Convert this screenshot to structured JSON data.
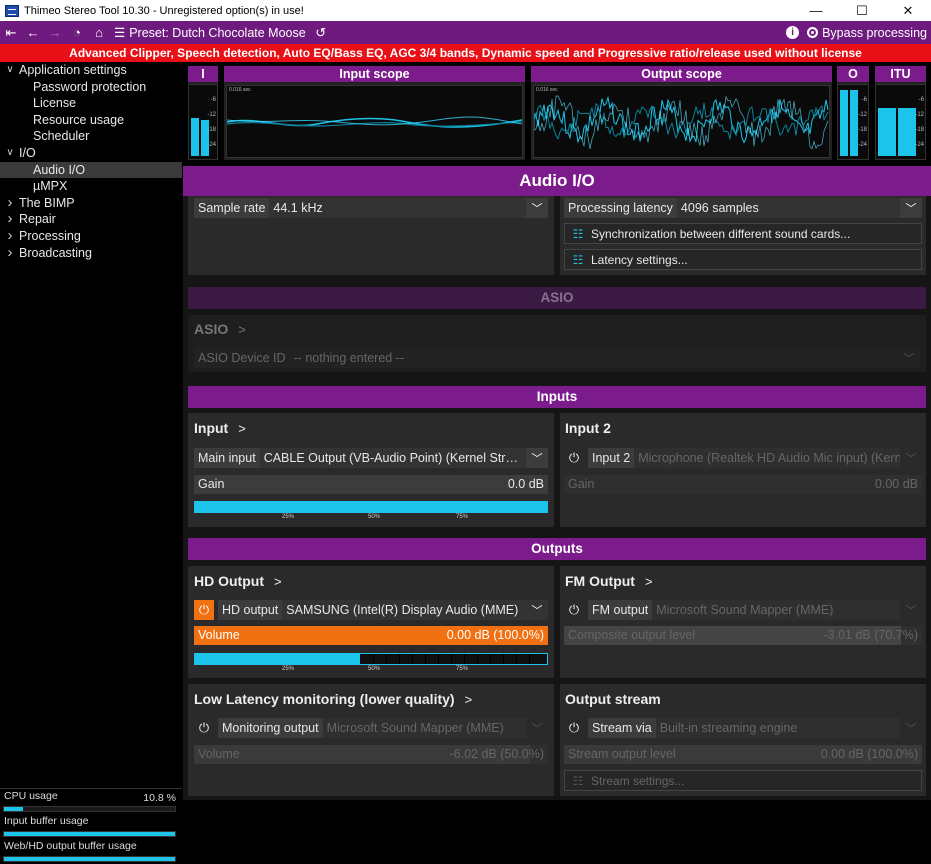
{
  "window": {
    "title": "Thimeo Stereo Tool 10.30 - Unregistered option(s) in use!",
    "controls": [
      "—",
      "☐",
      "✕"
    ]
  },
  "toolbar": {
    "preset_label": "Preset: Dutch Chocolate Moose",
    "bypass_label": "Bypass processing"
  },
  "warning": "Advanced Clipper, Speech detection, Auto EQ/Bass EQ, AGC 3/4 bands, Dynamic speed and Progressive ratio/release used without license",
  "sidebar": {
    "items": [
      {
        "label": "Application settings",
        "expanded": true
      },
      {
        "label": "Password protection",
        "child": true
      },
      {
        "label": "License",
        "child": true
      },
      {
        "label": "Resource usage",
        "child": true
      },
      {
        "label": "Scheduler",
        "child": true
      },
      {
        "label": "I/O",
        "expanded": true
      },
      {
        "label": "Audio I/O",
        "child": true,
        "selected": true
      },
      {
        "label": "µMPX",
        "child": true
      },
      {
        "label": "The BIMP",
        "expanded": false
      },
      {
        "label": "Repair",
        "expanded": false
      },
      {
        "label": "Processing",
        "expanded": false
      },
      {
        "label": "Broadcasting",
        "expanded": false
      }
    ]
  },
  "usage": {
    "cpu": {
      "label": "CPU usage",
      "value": "10.8 %",
      "fraction": 0.11
    },
    "input_buffer": {
      "label": "Input buffer usage",
      "fraction": 1.0
    },
    "output_buffer": {
      "label": "Web/HD output buffer usage",
      "fraction": 1.0
    }
  },
  "meters": {
    "input_label": "I",
    "input_scope_label": "Input scope",
    "output_scope_label": "Output scope",
    "output_label": "O",
    "itu_label": "ITU",
    "scope_time": "0.016 sec",
    "scale": [
      "-6",
      "-12",
      "-18",
      "-24"
    ]
  },
  "page_title": "Audio I/O",
  "top": {
    "sample_rate": {
      "label": "Sample rate",
      "value": "44.1 kHz"
    },
    "latency": {
      "label": "Processing latency",
      "value": "4096 samples"
    },
    "sync_button": "Synchronization between different sound cards...",
    "latency_button": "Latency settings..."
  },
  "asio": {
    "section": "ASIO",
    "title": "ASIO",
    "device_label": "ASIO Device ID",
    "device_value": "-- nothing entered --"
  },
  "inputs": {
    "section": "Inputs",
    "input": {
      "title": "Input",
      "device_label": "Main input",
      "device_value": "CABLE Output (VB-Audio Point) (Kernel Streaming)",
      "gain_label": "Gain",
      "gain_value": "0.0 dB",
      "level_fraction": 1.0,
      "vu_ticks": [
        "25%",
        "50%",
        "75%"
      ]
    },
    "input2": {
      "title": "Input 2",
      "device_label": "Input 2",
      "device_value": "Microphone (Realtek HD Audio Mic input) (Kernel Streaming)",
      "gain_label": "Gain",
      "gain_value": "0.00 dB"
    }
  },
  "outputs": {
    "section": "Outputs",
    "hd": {
      "title": "HD Output",
      "device_label": "HD output",
      "device_value": "SAMSUNG (Intel(R) Display Audio (MME)",
      "volume_label": "Volume",
      "volume_value": "0.00 dB (100.0%)",
      "volume_fraction": 1.0,
      "level_fraction": 0.47,
      "vu_ticks": [
        "25%",
        "50%",
        "75%"
      ],
      "accent": "#f07012"
    },
    "fm": {
      "title": "FM Output",
      "device_label": "FM output",
      "device_value": "Microsoft Sound Mapper (MME)",
      "level_label": "Composite output level",
      "level_value": "-3.01 dB (70.7%)",
      "level_fraction": 0.94
    },
    "monitor": {
      "title": "Low Latency monitoring (lower quality)",
      "device_label": "Monitoring output",
      "device_value": "Microsoft Sound Mapper (MME)",
      "volume_label": "Volume",
      "volume_value": "-6.02 dB (50.0%)",
      "volume_fraction": 0.95
    },
    "stream": {
      "title": "Output stream",
      "device_label": "Stream via",
      "device_value": "Built-in streaming engine",
      "level_label": "Stream output level",
      "level_value": "0.00 dB (100.0%)",
      "settings_button": "Stream settings..."
    }
  },
  "colors": {
    "accent": "#7b1b8c",
    "meter": "#1dc4e9",
    "warning": "#e81016",
    "power_on": "#f07012"
  }
}
